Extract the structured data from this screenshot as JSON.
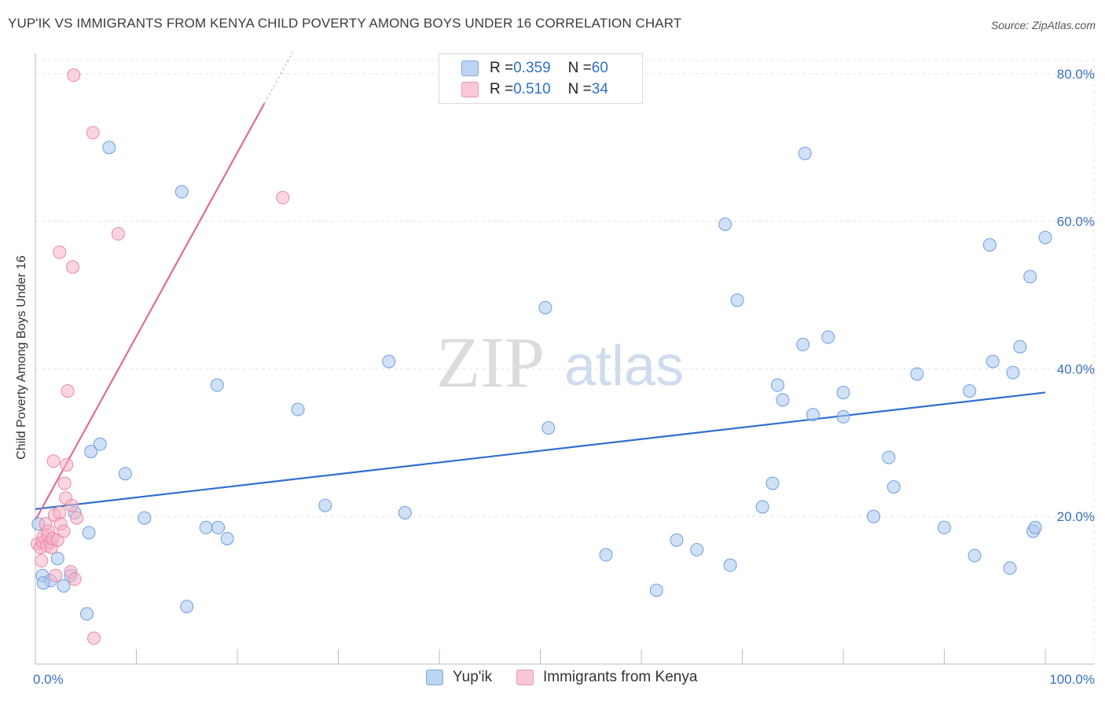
{
  "title": "YUP'IK VS IMMIGRANTS FROM KENYA CHILD POVERTY AMONG BOYS UNDER 16 CORRELATION CHART",
  "source": "Source: ZipAtlas.com",
  "watermark": {
    "zip": "ZIP",
    "atlas": "atlas"
  },
  "legend_top": {
    "rows": [
      {
        "r_label": "R = ",
        "r_value": "0.359",
        "n_label": "N = ",
        "n_value": "60",
        "color": "#a9c7ef"
      },
      {
        "r_label": "R = ",
        "r_value": "0.510",
        "n_label": "N = ",
        "n_value": "34",
        "color": "#f5b3c6"
      }
    ]
  },
  "legend_bottom": {
    "items": [
      {
        "label": "Yup'ik",
        "color": "#a9c7ef"
      },
      {
        "label": "Immigrants from Kenya",
        "color": "#f5b3c6"
      }
    ]
  },
  "chart_data": {
    "type": "scatter",
    "title": "YUP'IK VS IMMIGRANTS FROM KENYA CHILD POVERTY AMONG BOYS UNDER 16 CORRELATION CHART",
    "xlabel": "",
    "ylabel": "Child Poverty Among Boys Under 16",
    "xlim": [
      0,
      100
    ],
    "ylim": [
      0,
      82
    ],
    "x_tick_labels": [
      "0.0%",
      "100.0%"
    ],
    "y_ticks": [
      20,
      40,
      60,
      80
    ],
    "y_tick_labels": [
      "20.0%",
      "40.0%",
      "60.0%",
      "80.0%"
    ],
    "grid": true,
    "series": [
      {
        "name": "Yup'ik",
        "color": "#a9c7ef",
        "edge": "#6f9fdc",
        "trend": {
          "x": [
            0,
            100
          ],
          "y": [
            21.0,
            36.8
          ],
          "color": "#2f6fcf"
        },
        "points": [
          [
            0.3,
            19.0
          ],
          [
            0.7,
            12.0
          ],
          [
            1.5,
            11.3
          ],
          [
            2.2,
            14.3
          ],
          [
            2.8,
            10.6
          ],
          [
            3.5,
            12.0
          ],
          [
            3.9,
            20.5
          ],
          [
            5.1,
            6.8
          ],
          [
            5.3,
            17.8
          ],
          [
            5.5,
            28.8
          ],
          [
            6.4,
            29.8
          ],
          [
            7.3,
            70.0
          ],
          [
            8.9,
            25.8
          ],
          [
            10.8,
            19.8
          ],
          [
            14.5,
            64.0
          ],
          [
            15.0,
            7.8
          ],
          [
            16.9,
            18.5
          ],
          [
            18.0,
            37.8
          ],
          [
            18.1,
            18.5
          ],
          [
            19.0,
            17.0
          ],
          [
            26.0,
            34.5
          ],
          [
            28.7,
            21.5
          ],
          [
            35.0,
            41.0
          ],
          [
            36.6,
            20.5
          ],
          [
            50.5,
            48.3
          ],
          [
            50.8,
            32.0
          ],
          [
            56.5,
            14.8
          ],
          [
            61.5,
            10.0
          ],
          [
            63.5,
            16.8
          ],
          [
            65.5,
            15.5
          ],
          [
            68.3,
            59.6
          ],
          [
            68.8,
            13.4
          ],
          [
            69.5,
            49.3
          ],
          [
            72.0,
            21.3
          ],
          [
            73.0,
            24.5
          ],
          [
            73.5,
            37.8
          ],
          [
            74.0,
            35.8
          ],
          [
            76.0,
            43.3
          ],
          [
            76.2,
            69.2
          ],
          [
            77.0,
            33.8
          ],
          [
            78.5,
            44.3
          ],
          [
            80.0,
            33.5
          ],
          [
            80.0,
            36.8
          ],
          [
            83.0,
            20.0
          ],
          [
            84.5,
            28.0
          ],
          [
            85.0,
            24.0
          ],
          [
            87.3,
            39.3
          ],
          [
            90.0,
            18.5
          ],
          [
            92.5,
            37.0
          ],
          [
            93.0,
            14.7
          ],
          [
            94.5,
            56.8
          ],
          [
            94.8,
            41.0
          ],
          [
            96.5,
            13.0
          ],
          [
            96.8,
            39.5
          ],
          [
            97.5,
            43.0
          ],
          [
            98.5,
            52.5
          ],
          [
            98.8,
            18.0
          ],
          [
            100.0,
            57.8
          ],
          [
            99.0,
            18.5
          ],
          [
            0.8,
            11.0
          ]
        ]
      },
      {
        "name": "Immigrants from Kenya",
        "color": "#f5b3c6",
        "edge": "#e88aa7",
        "trend": {
          "x": [
            0,
            25.5
          ],
          "y": [
            19.5,
            83.0
          ],
          "color": "#e06b95"
        },
        "points": [
          [
            0.2,
            16.3
          ],
          [
            0.5,
            15.8
          ],
          [
            0.6,
            14.0
          ],
          [
            0.7,
            16.5
          ],
          [
            0.8,
            17.3
          ],
          [
            1.0,
            19.0
          ],
          [
            1.1,
            16.0
          ],
          [
            1.2,
            17.5
          ],
          [
            1.3,
            18.0
          ],
          [
            1.5,
            16.5
          ],
          [
            1.6,
            15.8
          ],
          [
            1.7,
            17.0
          ],
          [
            1.8,
            27.5
          ],
          [
            1.9,
            20.2
          ],
          [
            2.0,
            12.0
          ],
          [
            2.2,
            16.8
          ],
          [
            2.4,
            20.5
          ],
          [
            2.5,
            19.0
          ],
          [
            2.8,
            18.0
          ],
          [
            2.9,
            24.5
          ],
          [
            3.0,
            22.5
          ],
          [
            3.1,
            27.0
          ],
          [
            3.2,
            37.0
          ],
          [
            3.5,
            12.5
          ],
          [
            3.6,
            21.5
          ],
          [
            3.9,
            11.5
          ],
          [
            4.1,
            19.8
          ],
          [
            2.4,
            55.8
          ],
          [
            3.7,
            53.8
          ],
          [
            3.8,
            79.8
          ],
          [
            5.7,
            72.0
          ],
          [
            8.2,
            58.3
          ],
          [
            24.5,
            63.2
          ],
          [
            5.8,
            3.5
          ]
        ]
      }
    ]
  }
}
